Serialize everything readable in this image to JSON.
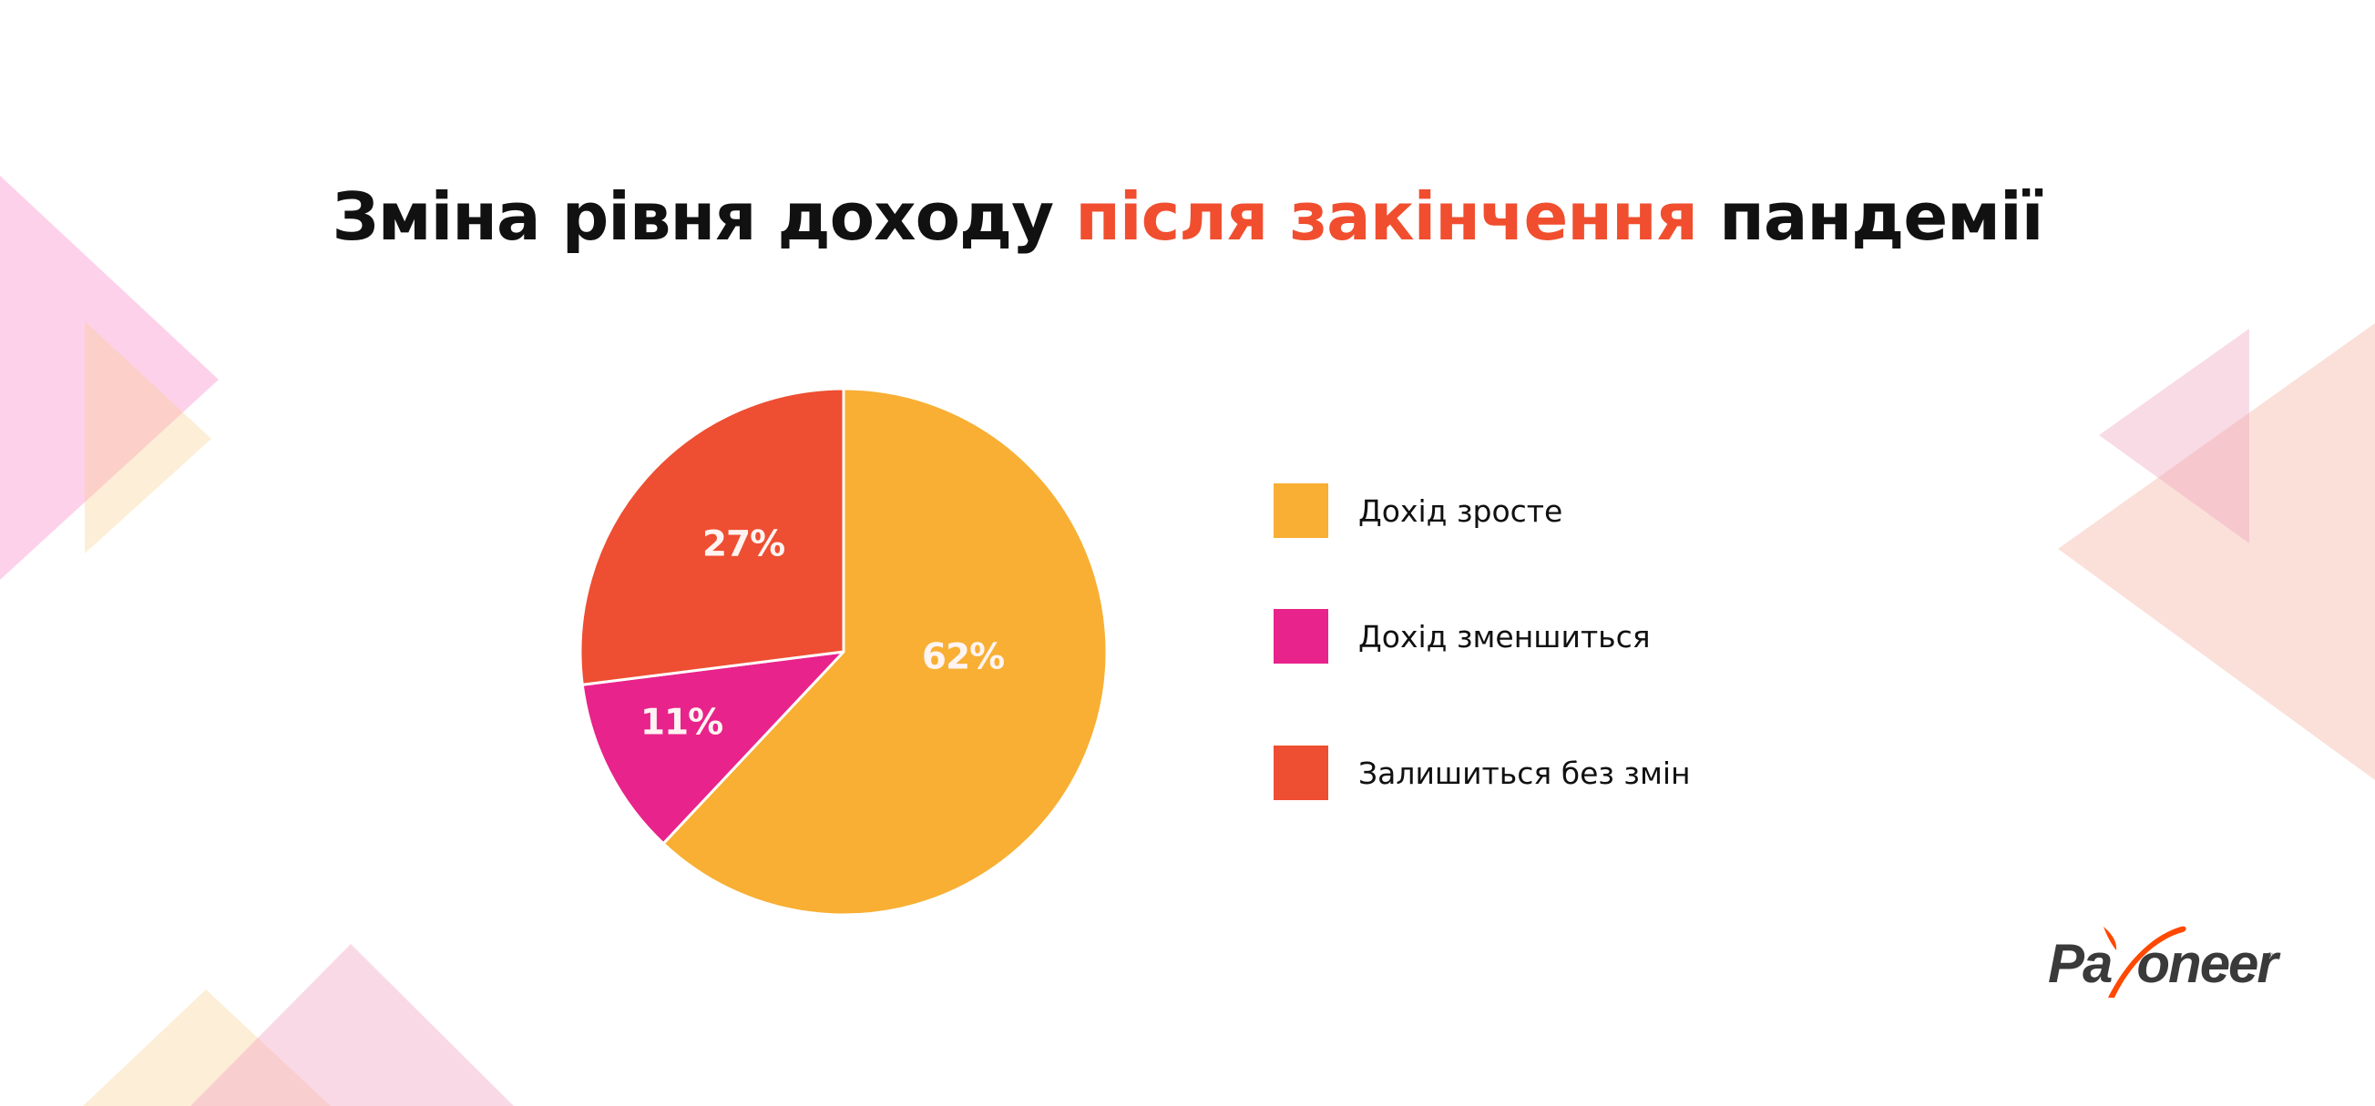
{
  "title": {
    "part1": "Зміна рівня доходу ",
    "accent": "після закінчення",
    "part2": " пандемії",
    "accent_color": "#F04E2F"
  },
  "chart_data": {
    "type": "pie",
    "title": "Зміна рівня доходу після закінчення пандемії",
    "categories": [
      "Дохід зросте",
      "Дохід зменшиться",
      "Залишиться без змін"
    ],
    "values": [
      62,
      11,
      27
    ],
    "labels": [
      "62%",
      "11%",
      "27%"
    ],
    "colors": [
      "#F8AF33",
      "#E8238B",
      "#EE4E32"
    ],
    "unit": "%",
    "legend_position": "right",
    "start_angle": "12 o'clock",
    "direction": "clockwise"
  },
  "legend": {
    "items": [
      {
        "label": "Дохід зросте",
        "color": "#F8AF33"
      },
      {
        "label": "Дохід зменшиться",
        "color": "#E8238B"
      },
      {
        "label": "Залишиться без змін",
        "color": "#EE4E32"
      }
    ]
  },
  "logo": {
    "text_before": "Pa",
    "text_after": "oneer",
    "registered": "®",
    "brand_color": "#FF4800",
    "text_color": "#3A3A3A"
  },
  "decor": {
    "pink": "#FDD3EA",
    "cream": "#FDEBD6",
    "salmon": "#FBDDD8",
    "rose": "#F9D9E2"
  }
}
